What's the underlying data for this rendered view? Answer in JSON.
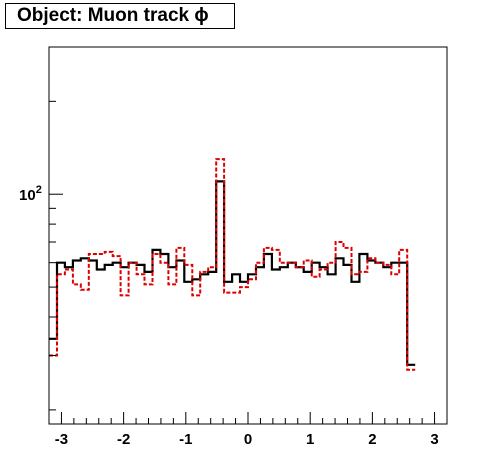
{
  "title": "Object: Muon track ϕ",
  "colors": {
    "series_black": "#000000",
    "series_red": "#dd0000",
    "frame": "#000000"
  },
  "chart_data": {
    "type": "histogram",
    "title": "Object: Muon track ϕ",
    "xlabel": "",
    "ylabel": "",
    "xlim": [
      -3.2,
      3.2
    ],
    "ylim": [
      18,
      300
    ],
    "y_scale": "log",
    "grid": false,
    "legend": "none",
    "x_tick_labels": [
      "-3",
      "-2",
      "-1",
      "0",
      "1",
      "2",
      "3"
    ],
    "x_ticks": [
      -3,
      -2,
      -1,
      0,
      1,
      2,
      3
    ],
    "y_tick_labels": [
      {
        "value": 100,
        "base": "10",
        "exp": "2"
      }
    ],
    "bin_edges_start": -3.2,
    "bin_width": 0.128,
    "series": [
      {
        "style": "solid",
        "color": "#000000",
        "values": [
          34,
          60,
          58,
          61,
          62,
          61,
          57,
          59,
          60,
          58,
          60,
          59,
          56,
          66,
          64,
          58,
          61,
          52,
          53,
          55,
          56,
          110,
          52,
          55,
          52,
          55,
          58,
          64,
          57,
          58,
          60,
          58,
          56,
          60,
          58,
          55,
          62,
          59,
          52,
          64,
          61,
          60,
          58,
          60,
          60,
          28
        ]
      },
      {
        "style": "dashed",
        "color": "#dd0000",
        "values": [
          30,
          55,
          57,
          51,
          49,
          64,
          64,
          65,
          63,
          47,
          60,
          55,
          51,
          64,
          60,
          51,
          67,
          59,
          47,
          56,
          58,
          130,
          48,
          48,
          50,
          53,
          60,
          67,
          66,
          60,
          60,
          58,
          61,
          54,
          57,
          60,
          70,
          67,
          55,
          56,
          62,
          60,
          59,
          55,
          66,
          27
        ]
      }
    ]
  }
}
